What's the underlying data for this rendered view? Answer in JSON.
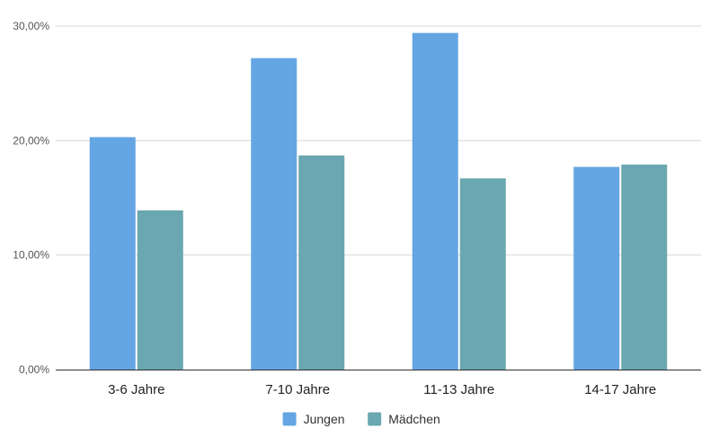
{
  "chart_data": {
    "type": "bar",
    "categories": [
      "3-6 Jahre",
      "7-10 Jahre",
      "11-13 Jahre",
      "14-17 Jahre"
    ],
    "series": [
      {
        "name": "Jungen",
        "color": "#64a5e3",
        "values": [
          20.3,
          27.2,
          29.4,
          17.7
        ]
      },
      {
        "name": "Mädchen",
        "color": "#6aa7b0",
        "values": [
          13.9,
          18.7,
          16.7,
          17.9
        ]
      }
    ],
    "yticks": [
      0,
      10,
      20,
      30
    ],
    "ytick_labels": [
      "0,00%",
      "10,00%",
      "20,00%",
      "30,00%"
    ],
    "ylim": [
      0,
      30
    ],
    "grid": true,
    "legend": "bottom"
  }
}
